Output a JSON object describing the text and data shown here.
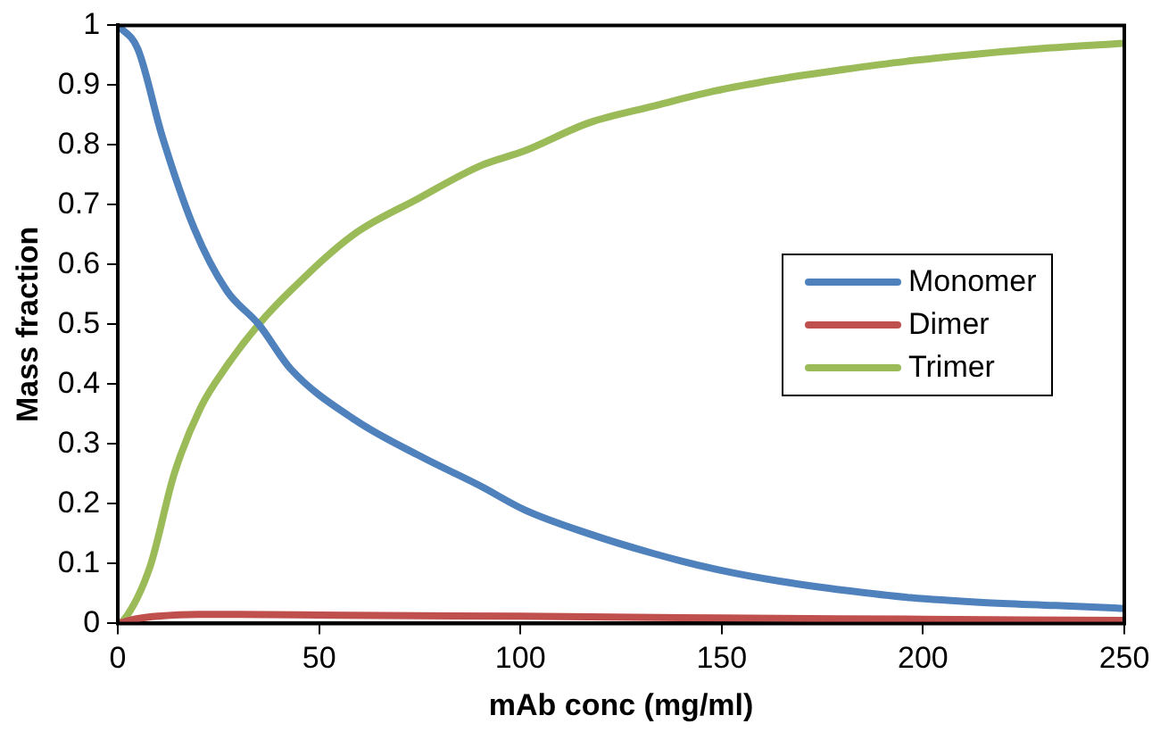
{
  "chart_data": {
    "type": "line",
    "xlabel": "mAb conc (mg/ml)",
    "ylabel": "Mass fraction",
    "xlim": [
      0,
      250
    ],
    "xticks": [
      0,
      50,
      100,
      150,
      200,
      250
    ],
    "ylim": [
      0,
      1
    ],
    "yticks": [
      0,
      0.1,
      0.2,
      0.3,
      0.4,
      0.5,
      0.6,
      0.7,
      0.8,
      0.9,
      1
    ],
    "grid": false,
    "legend": "right",
    "marker": "none",
    "line_style": "solid",
    "series": [
      {
        "name": "Monomer",
        "color": "#4f81bd",
        "x": [
          0,
          5,
          11,
          19,
          27,
          35,
          43,
          59,
          75,
          90,
          101,
          117,
          133,
          149,
          165,
          181,
          197,
          215,
          233,
          250
        ],
        "values": [
          1,
          0.96,
          0.815,
          0.66,
          0.557,
          0.5,
          0.425,
          0.34,
          0.28,
          0.23,
          0.19,
          0.15,
          0.117,
          0.09,
          0.07,
          0.055,
          0.043,
          0.035,
          0.03,
          0.025
        ]
      },
      {
        "name": "Dimer",
        "color": "#c0504d",
        "x": [
          0,
          5,
          10,
          20,
          30,
          50,
          100,
          150,
          200,
          250
        ],
        "values": [
          0,
          0.008,
          0.012,
          0.015,
          0.015,
          0.014,
          0.012,
          0.009,
          0.007,
          0.005
        ]
      },
      {
        "name": "Trimer",
        "color": "#9bbb59",
        "x": [
          0,
          1.4,
          8,
          14,
          20.5,
          27,
          35,
          43,
          58.5,
          74.5,
          90,
          101,
          117,
          133,
          148,
          164,
          180,
          196,
          212,
          231,
          250
        ],
        "values": [
          0,
          0.005,
          0.095,
          0.25,
          0.36,
          0.43,
          0.5,
          0.557,
          0.65,
          0.71,
          0.765,
          0.79,
          0.837,
          0.865,
          0.89,
          0.91,
          0.926,
          0.94,
          0.951,
          0.962,
          0.97
        ]
      }
    ]
  }
}
